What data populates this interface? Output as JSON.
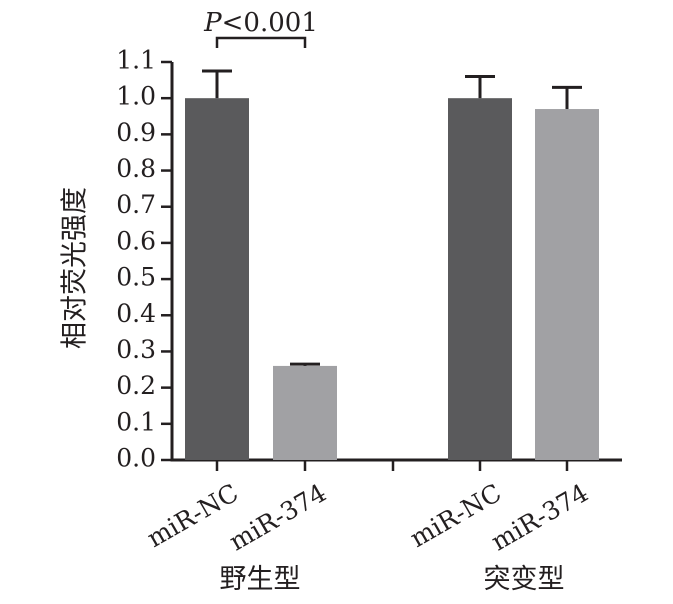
{
  "chart_data": {
    "type": "bar",
    "ylabel": "相对荧光强度",
    "ylim": [
      0,
      1.1
    ],
    "yticks": [
      "0.0",
      "0.1",
      "0.2",
      "0.3",
      "0.4",
      "0.5",
      "0.6",
      "0.7",
      "0.8",
      "0.9",
      "1.0",
      "1.1"
    ],
    "groups": [
      {
        "label": "野生型",
        "bars": [
          {
            "category": "miR-NC",
            "value": 1.0,
            "error": 0.075,
            "color": "#5a5a5c"
          },
          {
            "category": "miR-374",
            "value": 0.26,
            "error": 0.005,
            "color": "#a1a1a4"
          }
        ]
      },
      {
        "label": "突变型",
        "bars": [
          {
            "category": "miR-NC",
            "value": 1.0,
            "error": 0.06,
            "color": "#5a5a5c"
          },
          {
            "category": "miR-374",
            "value": 0.97,
            "error": 0.06,
            "color": "#a1a1a4"
          }
        ]
      }
    ],
    "annotation": {
      "italic_part": "P",
      "rest": "<0.001",
      "between": [
        0,
        1
      ]
    },
    "colors": {
      "axis": "#231f20",
      "dark_bar": "#5a5a5c",
      "light_bar": "#a1a1a4"
    }
  }
}
